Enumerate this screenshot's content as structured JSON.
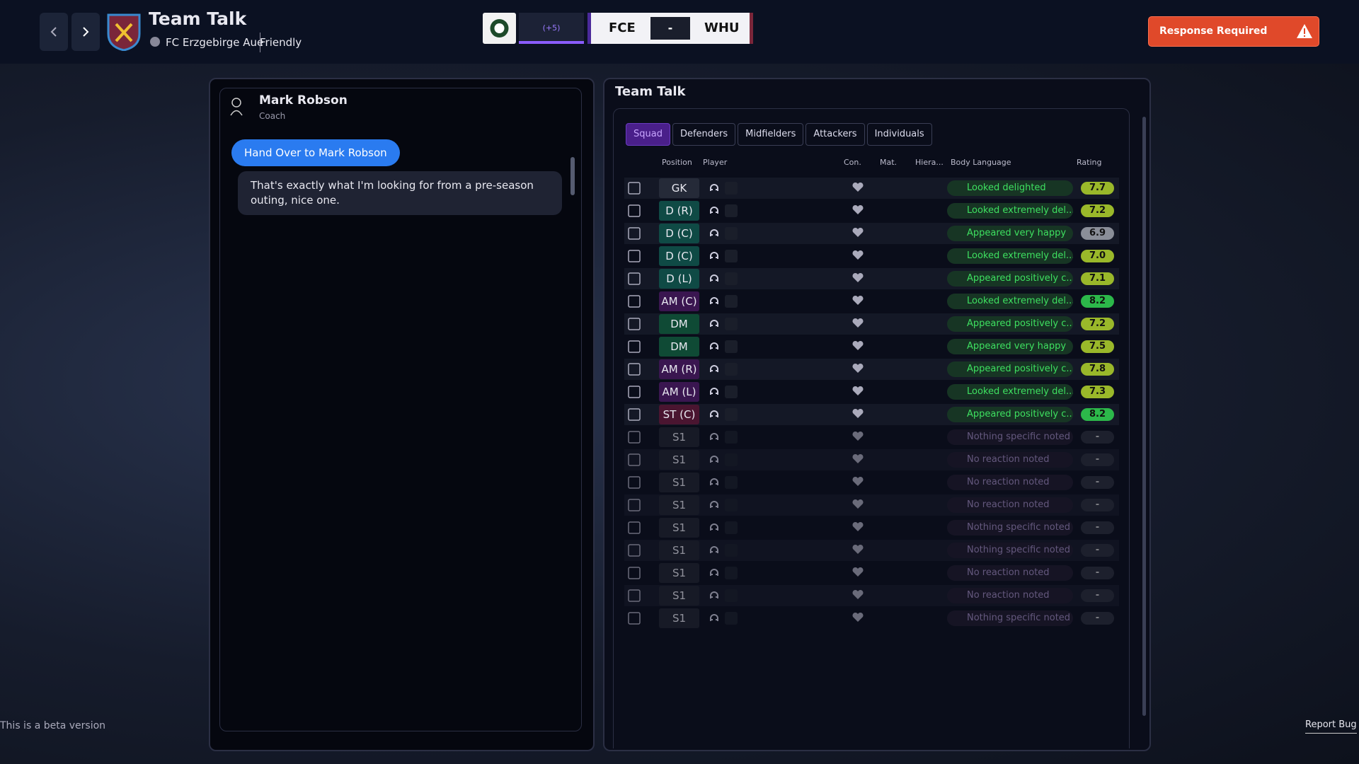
{
  "header": {
    "title": "Team Talk",
    "club": "FC Erzgebirge Aue",
    "match_type": "Friendly",
    "momentum": "(+5)",
    "home": "FCE",
    "score": "-",
    "away": "WHU",
    "alert": "Response Required"
  },
  "chat": {
    "speaker": "Mark Robson",
    "role": "Coach",
    "handover_button": "Hand Over to Mark Robson",
    "message": "That's exactly what I'm looking for from a pre-season outing, nice one."
  },
  "panel": {
    "title": "Team Talk",
    "tabs": [
      "Squad",
      "Defenders",
      "Midfielders",
      "Attackers",
      "Individuals"
    ],
    "columns": {
      "position": "Position",
      "player": "Player",
      "con": "Con.",
      "mat": "Mat.",
      "hierarchy": "Hiera...",
      "body_language": "Body Language",
      "rating": "Rating"
    },
    "rows": [
      [
        "GK",
        "Looked delighted",
        "7.7"
      ],
      [
        "D (R)",
        "Looked extremely del...",
        "7.2"
      ],
      [
        "D (C)",
        "Appeared very happy",
        "6.9"
      ],
      [
        "D (C)",
        "Looked extremely del...",
        "7.0"
      ],
      [
        "D (L)",
        "Appeared positively c...",
        "7.1"
      ],
      [
        "AM (C)",
        "Looked extremely del...",
        "8.2"
      ],
      [
        "DM",
        "Appeared positively c...",
        "7.2"
      ],
      [
        "DM",
        "Appeared very happy",
        "7.5"
      ],
      [
        "AM (R)",
        "Appeared positively c...",
        "7.8"
      ],
      [
        "AM (L)",
        "Looked extremely del...",
        "7.3"
      ],
      [
        "ST (C)",
        "Appeared positively c...",
        "8.2"
      ],
      [
        "S1",
        "Nothing specific noted",
        "-"
      ],
      [
        "S1",
        "No reaction noted",
        "-"
      ],
      [
        "S1",
        "No reaction noted",
        "-"
      ],
      [
        "S1",
        "No reaction noted",
        "-"
      ],
      [
        "S1",
        "Nothing specific noted",
        "-"
      ],
      [
        "S1",
        "Nothing specific noted",
        "-"
      ],
      [
        "S1",
        "No reaction noted",
        "-"
      ],
      [
        "S1",
        "No reaction noted",
        "-"
      ],
      [
        "S1",
        "Nothing specific noted",
        "-"
      ]
    ]
  },
  "footer": {
    "beta": "This is a beta version",
    "report": "Report Bug"
  }
}
